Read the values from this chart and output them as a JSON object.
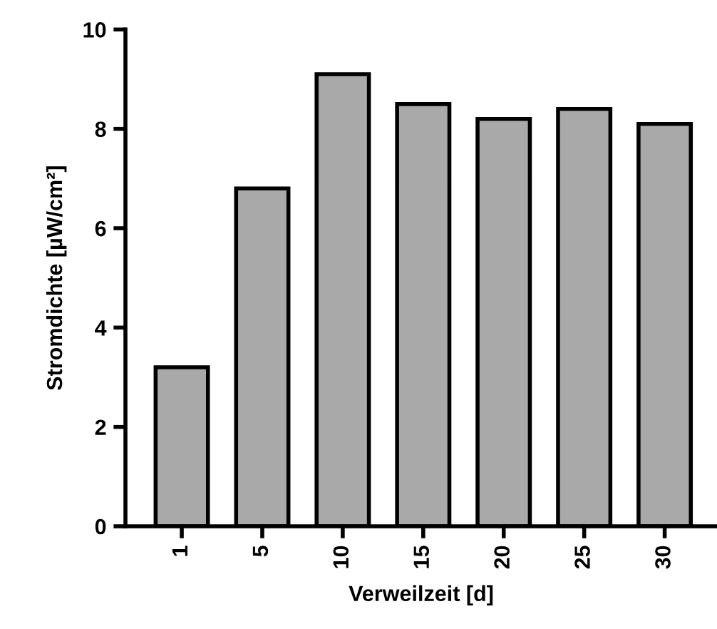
{
  "chart_data": {
    "type": "bar",
    "xlabel": "Verweilzeit [d]",
    "ylabel": "Stromdichte [µW/cm²]",
    "categories": [
      "1",
      "5",
      "10",
      "15",
      "20",
      "25",
      "30"
    ],
    "values": [
      3.2,
      6.8,
      9.1,
      8.5,
      8.2,
      8.4,
      8.1
    ],
    "color": "#a9a9a9",
    "ylim": [
      0,
      10
    ],
    "yticks": [
      0,
      2,
      4,
      6,
      8,
      10
    ],
    "grid": false,
    "legend": false
  }
}
